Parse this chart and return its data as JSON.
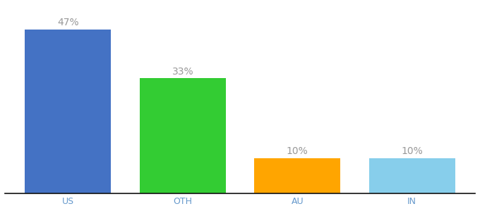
{
  "categories": [
    "US",
    "OTH",
    "AU",
    "IN"
  ],
  "values": [
    47,
    33,
    10,
    10
  ],
  "bar_colors": [
    "#4472C4",
    "#33CC33",
    "#FFA500",
    "#87CEEB"
  ],
  "labels": [
    "47%",
    "33%",
    "10%",
    "10%"
  ],
  "background_color": "#ffffff",
  "ylim": [
    0,
    54
  ],
  "bar_width": 0.75,
  "label_fontsize": 10,
  "tick_fontsize": 9,
  "label_color": "#999999",
  "tick_color": "#6699CC"
}
